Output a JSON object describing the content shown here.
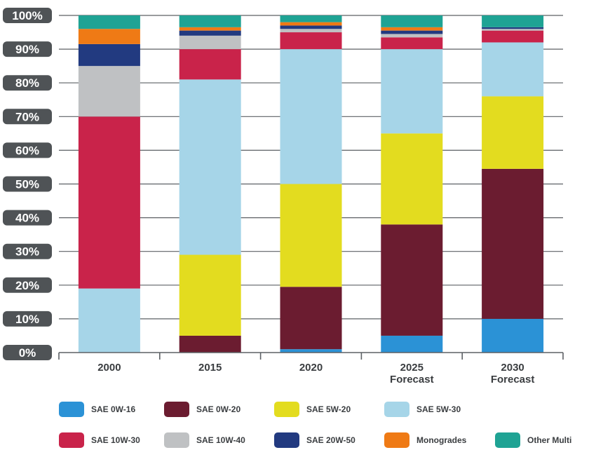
{
  "chart_data": {
    "type": "stacked-bar",
    "categories": [
      "2000",
      "2015",
      "2020",
      "2025 Forecast",
      "2030 Forecast"
    ],
    "ylim": [
      0,
      100
    ],
    "yticks": [
      "0%",
      "10%",
      "20%",
      "30%",
      "40%",
      "50%",
      "60%",
      "70%",
      "80%",
      "90%",
      "100%"
    ],
    "series": [
      {
        "name": "SAE 0W-16",
        "color": "#2b92d6",
        "values": [
          0,
          0,
          1,
          5,
          10
        ]
      },
      {
        "name": "SAE 0W-20",
        "color": "#6b1c30",
        "values": [
          0,
          5,
          18.5,
          33,
          44.5
        ]
      },
      {
        "name": "SAE 5W-20",
        "color": "#e3dc1f",
        "values": [
          0,
          24,
          30.5,
          27,
          21.5
        ]
      },
      {
        "name": "SAE 5W-30",
        "color": "#a6d5e8",
        "values": [
          19,
          52,
          40,
          25,
          16
        ]
      },
      {
        "name": "SAE 10W-30",
        "color": "#c9234a",
        "values": [
          51,
          9,
          5,
          3.5,
          3.5
        ]
      },
      {
        "name": "SAE 10W-40",
        "color": "#bfc1c3",
        "values": [
          15,
          4,
          1,
          1,
          0.5
        ]
      },
      {
        "name": "SAE 20W-50",
        "color": "#223a80",
        "values": [
          6.5,
          1.5,
          1,
          1,
          0.5
        ]
      },
      {
        "name": "Monogrades",
        "color": "#ef7a15",
        "values": [
          4.5,
          1,
          1,
          1,
          0
        ]
      },
      {
        "name": "Other Multi",
        "color": "#1fa394",
        "values": [
          4,
          3.5,
          2,
          3.5,
          3.5
        ]
      }
    ],
    "title": "",
    "xlabel": "",
    "ylabel": ""
  },
  "legend": {
    "row1": [
      "SAE 0W-16",
      "SAE 0W-20",
      "SAE 5W-20",
      "SAE 5W-30"
    ],
    "row2": [
      "SAE 10W-30",
      "SAE 10W-40",
      "SAE 20W-50",
      "Monogrades",
      "Other Multi"
    ]
  }
}
